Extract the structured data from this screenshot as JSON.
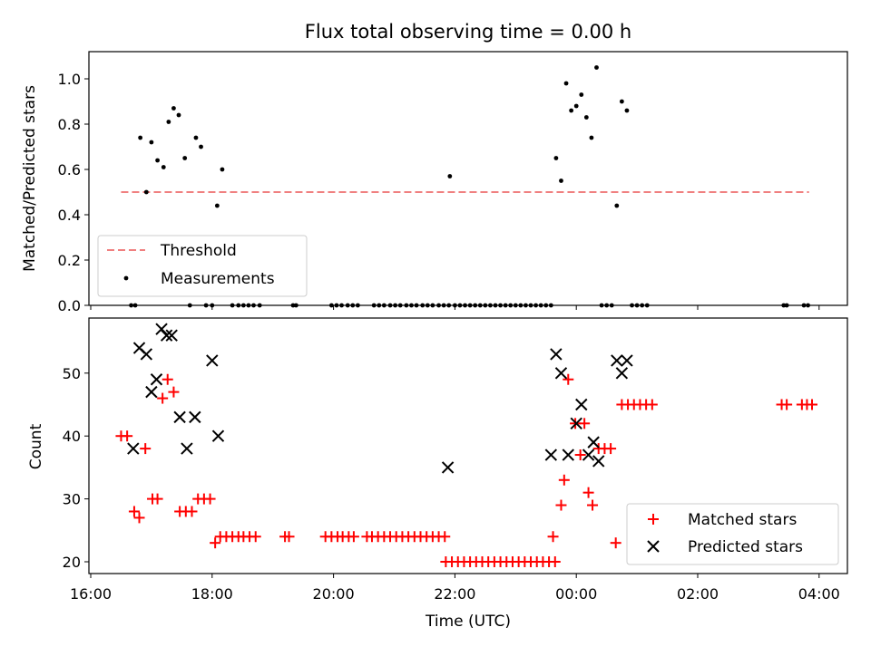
{
  "chart_data": [
    {
      "type": "scatter",
      "title": "Flux total observing time = 0.00 h",
      "xlabel": "",
      "ylabel": "Matched/Predicted stars",
      "x_unit": "time (UTC)",
      "xlim": [
        "16:00",
        "04:00"
      ],
      "ylim": [
        0,
        1.1
      ],
      "xticks": [
        "16:00",
        "18:00",
        "20:00",
        "22:00",
        "00:00",
        "02:00",
        "04:00"
      ],
      "yticks": [
        "0.0",
        "0.2",
        "0.4",
        "0.6",
        "0.8",
        "1.0"
      ],
      "legend": {
        "placement": "lower-left",
        "entries": [
          "Threshold",
          "Measurements"
        ]
      },
      "threshold": {
        "name": "Threshold",
        "value": 0.5,
        "x_range": [
          "16:30",
          "03:50"
        ],
        "color": "#f08080",
        "style": "dashed"
      },
      "series": [
        {
          "name": "Measurements",
          "marker": "dot",
          "color": "#000000",
          "points": [
            [
              "16:40",
              0.0
            ],
            [
              "16:44",
              0.0
            ],
            [
              "16:49",
              0.74
            ],
            [
              "16:55",
              0.5
            ],
            [
              "17:00",
              0.72
            ],
            [
              "17:06",
              0.64
            ],
            [
              "17:12",
              0.61
            ],
            [
              "17:17",
              0.81
            ],
            [
              "17:22",
              0.87
            ],
            [
              "17:27",
              0.84
            ],
            [
              "17:33",
              0.65
            ],
            [
              "17:38",
              0.0
            ],
            [
              "17:44",
              0.74
            ],
            [
              "17:49",
              0.7
            ],
            [
              "17:54",
              0.0
            ],
            [
              "18:00",
              0.0
            ],
            [
              "18:05",
              0.44
            ],
            [
              "18:10",
              0.6
            ],
            [
              "18:20",
              0.0
            ],
            [
              "18:26",
              0.0
            ],
            [
              "18:31",
              0.0
            ],
            [
              "18:36",
              0.0
            ],
            [
              "18:41",
              0.0
            ],
            [
              "18:47",
              0.0
            ],
            [
              "19:20",
              0.0
            ],
            [
              "19:23",
              0.0
            ],
            [
              "19:58",
              0.0
            ],
            [
              "20:03",
              0.0
            ],
            [
              "20:08",
              0.0
            ],
            [
              "20:14",
              0.0
            ],
            [
              "20:19",
              0.0
            ],
            [
              "20:24",
              0.0
            ],
            [
              "20:40",
              0.0
            ],
            [
              "20:45",
              0.0
            ],
            [
              "20:50",
              0.0
            ],
            [
              "20:56",
              0.0
            ],
            [
              "21:01",
              0.0
            ],
            [
              "21:06",
              0.0
            ],
            [
              "21:12",
              0.0
            ],
            [
              "21:17",
              0.0
            ],
            [
              "21:22",
              0.0
            ],
            [
              "21:28",
              0.0
            ],
            [
              "21:33",
              0.0
            ],
            [
              "21:38",
              0.0
            ],
            [
              "21:44",
              0.0
            ],
            [
              "21:49",
              0.0
            ],
            [
              "21:54",
              0.0
            ],
            [
              "21:55",
              0.57
            ],
            [
              "22:00",
              0.0
            ],
            [
              "22:05",
              0.0
            ],
            [
              "22:10",
              0.0
            ],
            [
              "22:15",
              0.0
            ],
            [
              "22:20",
              0.0
            ],
            [
              "22:25",
              0.0
            ],
            [
              "22:30",
              0.0
            ],
            [
              "22:35",
              0.0
            ],
            [
              "22:40",
              0.0
            ],
            [
              "22:45",
              0.0
            ],
            [
              "22:50",
              0.0
            ],
            [
              "22:55",
              0.0
            ],
            [
              "23:00",
              0.0
            ],
            [
              "23:05",
              0.0
            ],
            [
              "23:10",
              0.0
            ],
            [
              "23:15",
              0.0
            ],
            [
              "23:20",
              0.0
            ],
            [
              "23:25",
              0.0
            ],
            [
              "23:30",
              0.0
            ],
            [
              "23:35",
              0.0
            ],
            [
              "23:40",
              0.65
            ],
            [
              "23:45",
              0.55
            ],
            [
              "23:50",
              0.98
            ],
            [
              "23:55",
              0.86
            ],
            [
              "24:00",
              0.88
            ],
            [
              "24:05",
              0.93
            ],
            [
              "24:10",
              0.83
            ],
            [
              "24:15",
              0.74
            ],
            [
              "24:20",
              1.05
            ],
            [
              "24:25",
              0.0
            ],
            [
              "24:30",
              0.0
            ],
            [
              "24:35",
              0.0
            ],
            [
              "24:40",
              0.44
            ],
            [
              "24:45",
              0.9
            ],
            [
              "24:50",
              0.86
            ],
            [
              "24:55",
              0.0
            ],
            [
              "25:00",
              0.0
            ],
            [
              "25:05",
              0.0
            ],
            [
              "25:10",
              0.0
            ],
            [
              "27:25",
              0.0
            ],
            [
              "27:28",
              0.0
            ],
            [
              "27:45",
              0.0
            ],
            [
              "27:49",
              0.0
            ]
          ]
        }
      ]
    },
    {
      "type": "scatter",
      "title": "",
      "xlabel": "Time (UTC)",
      "ylabel": "Count",
      "xlim": [
        "16:00",
        "04:00"
      ],
      "ylim": [
        18,
        58
      ],
      "xticks": [
        "16:00",
        "18:00",
        "20:00",
        "22:00",
        "00:00",
        "02:00",
        "04:00"
      ],
      "yticks": [
        "20",
        "30",
        "40",
        "50"
      ],
      "legend": {
        "placement": "lower-right",
        "entries": [
          "Matched stars",
          "Predicted stars"
        ]
      },
      "series": [
        {
          "name": "Matched stars",
          "marker": "plus",
          "color": "#ff0000",
          "points": [
            [
              "16:30",
              40
            ],
            [
              "16:36",
              40
            ],
            [
              "16:43",
              28
            ],
            [
              "16:48",
              27
            ],
            [
              "16:54",
              38
            ],
            [
              "17:01",
              30
            ],
            [
              "17:06",
              30
            ],
            [
              "17:11",
              46
            ],
            [
              "17:16",
              49
            ],
            [
              "17:22",
              47
            ],
            [
              "17:28",
              28
            ],
            [
              "17:34",
              28
            ],
            [
              "17:40",
              28
            ],
            [
              "17:46",
              30
            ],
            [
              "17:52",
              30
            ],
            [
              "17:58",
              30
            ],
            [
              "18:03",
              23
            ],
            [
              "18:08",
              24
            ],
            [
              "18:14",
              24
            ],
            [
              "18:20",
              24
            ],
            [
              "18:26",
              24
            ],
            [
              "18:31",
              24
            ],
            [
              "18:37",
              24
            ],
            [
              "18:43",
              24
            ],
            [
              "19:12",
              24
            ],
            [
              "19:16",
              24
            ],
            [
              "19:52",
              24
            ],
            [
              "19:58",
              24
            ],
            [
              "20:04",
              24
            ],
            [
              "20:09",
              24
            ],
            [
              "20:15",
              24
            ],
            [
              "20:20",
              24
            ],
            [
              "20:33",
              24
            ],
            [
              "20:38",
              24
            ],
            [
              "20:44",
              24
            ],
            [
              "20:50",
              24
            ],
            [
              "20:56",
              24
            ],
            [
              "21:02",
              24
            ],
            [
              "21:08",
              24
            ],
            [
              "21:14",
              24
            ],
            [
              "21:20",
              24
            ],
            [
              "21:26",
              24
            ],
            [
              "21:32",
              24
            ],
            [
              "21:38",
              24
            ],
            [
              "21:44",
              24
            ],
            [
              "21:50",
              24
            ],
            [
              "21:51",
              20
            ],
            [
              "21:57",
              20
            ],
            [
              "22:03",
              20
            ],
            [
              "22:09",
              20
            ],
            [
              "22:15",
              20
            ],
            [
              "22:21",
              20
            ],
            [
              "22:27",
              20
            ],
            [
              "22:33",
              20
            ],
            [
              "22:39",
              20
            ],
            [
              "22:45",
              20
            ],
            [
              "22:51",
              20
            ],
            [
              "22:57",
              20
            ],
            [
              "23:03",
              20
            ],
            [
              "23:09",
              20
            ],
            [
              "23:15",
              20
            ],
            [
              "23:21",
              20
            ],
            [
              "23:27",
              20
            ],
            [
              "23:33",
              20
            ],
            [
              "23:39",
              20
            ],
            [
              "23:37",
              24
            ],
            [
              "23:45",
              29
            ],
            [
              "23:48",
              33
            ],
            [
              "23:52",
              49
            ],
            [
              "23:59",
              42
            ],
            [
              "24:04",
              37
            ],
            [
              "24:08",
              42
            ],
            [
              "24:12",
              31
            ],
            [
              "24:16",
              29
            ],
            [
              "24:22",
              38
            ],
            [
              "24:28",
              38
            ],
            [
              "24:34",
              38
            ],
            [
              "24:39",
              23
            ],
            [
              "24:45",
              45
            ],
            [
              "24:51",
              45
            ],
            [
              "24:57",
              45
            ],
            [
              "25:03",
              45
            ],
            [
              "25:09",
              45
            ],
            [
              "25:15",
              45
            ],
            [
              "27:23",
              45
            ],
            [
              "27:28",
              45
            ],
            [
              "27:43",
              45
            ],
            [
              "27:48",
              45
            ],
            [
              "27:53",
              45
            ]
          ]
        },
        {
          "name": "Predicted stars",
          "marker": "x",
          "color": "#000000",
          "points": [
            [
              "16:42",
              38
            ],
            [
              "16:48",
              54
            ],
            [
              "16:55",
              53
            ],
            [
              "17:00",
              47
            ],
            [
              "17:05",
              49
            ],
            [
              "17:10",
              57
            ],
            [
              "17:15",
              56
            ],
            [
              "17:20",
              56
            ],
            [
              "17:28",
              43
            ],
            [
              "17:35",
              38
            ],
            [
              "17:43",
              43
            ],
            [
              "18:00",
              52
            ],
            [
              "18:06",
              40
            ],
            [
              "21:53",
              35
            ],
            [
              "23:35",
              37
            ],
            [
              "23:40",
              53
            ],
            [
              "23:45",
              50
            ],
            [
              "23:52",
              37
            ],
            [
              "24:00",
              42
            ],
            [
              "24:05",
              45
            ],
            [
              "24:12",
              37
            ],
            [
              "24:17",
              39
            ],
            [
              "24:22",
              36
            ],
            [
              "24:40",
              52
            ],
            [
              "24:45",
              50
            ],
            [
              "24:50",
              52
            ]
          ]
        }
      ]
    }
  ]
}
